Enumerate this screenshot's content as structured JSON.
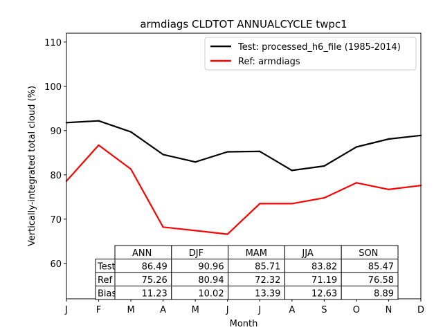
{
  "chart_data": {
    "type": "line",
    "title": "armdiags CLDTOT ANNUALCYCLE twpc1",
    "xlabel": "Month",
    "ylabel": "Vertically-integrated total cloud (%)",
    "categories": [
      "J",
      "F",
      "M",
      "A",
      "M",
      "J",
      "J",
      "A",
      "S",
      "O",
      "N",
      "D"
    ],
    "ylim": [
      52,
      112
    ],
    "yticks": [
      60,
      70,
      80,
      90,
      100,
      110
    ],
    "grid": false,
    "legend_position": "top-right",
    "series": [
      {
        "name": "Test: processed_h6_file (1985-2014)",
        "color": "#000000",
        "values": [
          91.8,
          92.2,
          89.7,
          84.6,
          82.9,
          85.2,
          85.3,
          81.0,
          82.0,
          86.3,
          88.1,
          88.9
        ]
      },
      {
        "name": "Ref: armdiags",
        "color": "#ff0000",
        "values": [
          78.6,
          86.7,
          81.3,
          68.2,
          67.4,
          66.6,
          73.5,
          73.5,
          74.8,
          78.2,
          76.7,
          77.6
        ]
      }
    ],
    "table": {
      "columns": [
        "ANN",
        "DJF",
        "MAM",
        "JJA",
        "SON"
      ],
      "rows": [
        {
          "label": "Test",
          "values": [
            "86.49",
            "90.96",
            "85.71",
            "83.82",
            "85.47"
          ]
        },
        {
          "label": "Ref",
          "values": [
            "75.26",
            "80.94",
            "72.32",
            "71.19",
            "76.58"
          ]
        },
        {
          "label": "Bias",
          "values": [
            "11.23",
            "10.02",
            "13.39",
            "12.63",
            "8.89"
          ]
        }
      ]
    }
  }
}
